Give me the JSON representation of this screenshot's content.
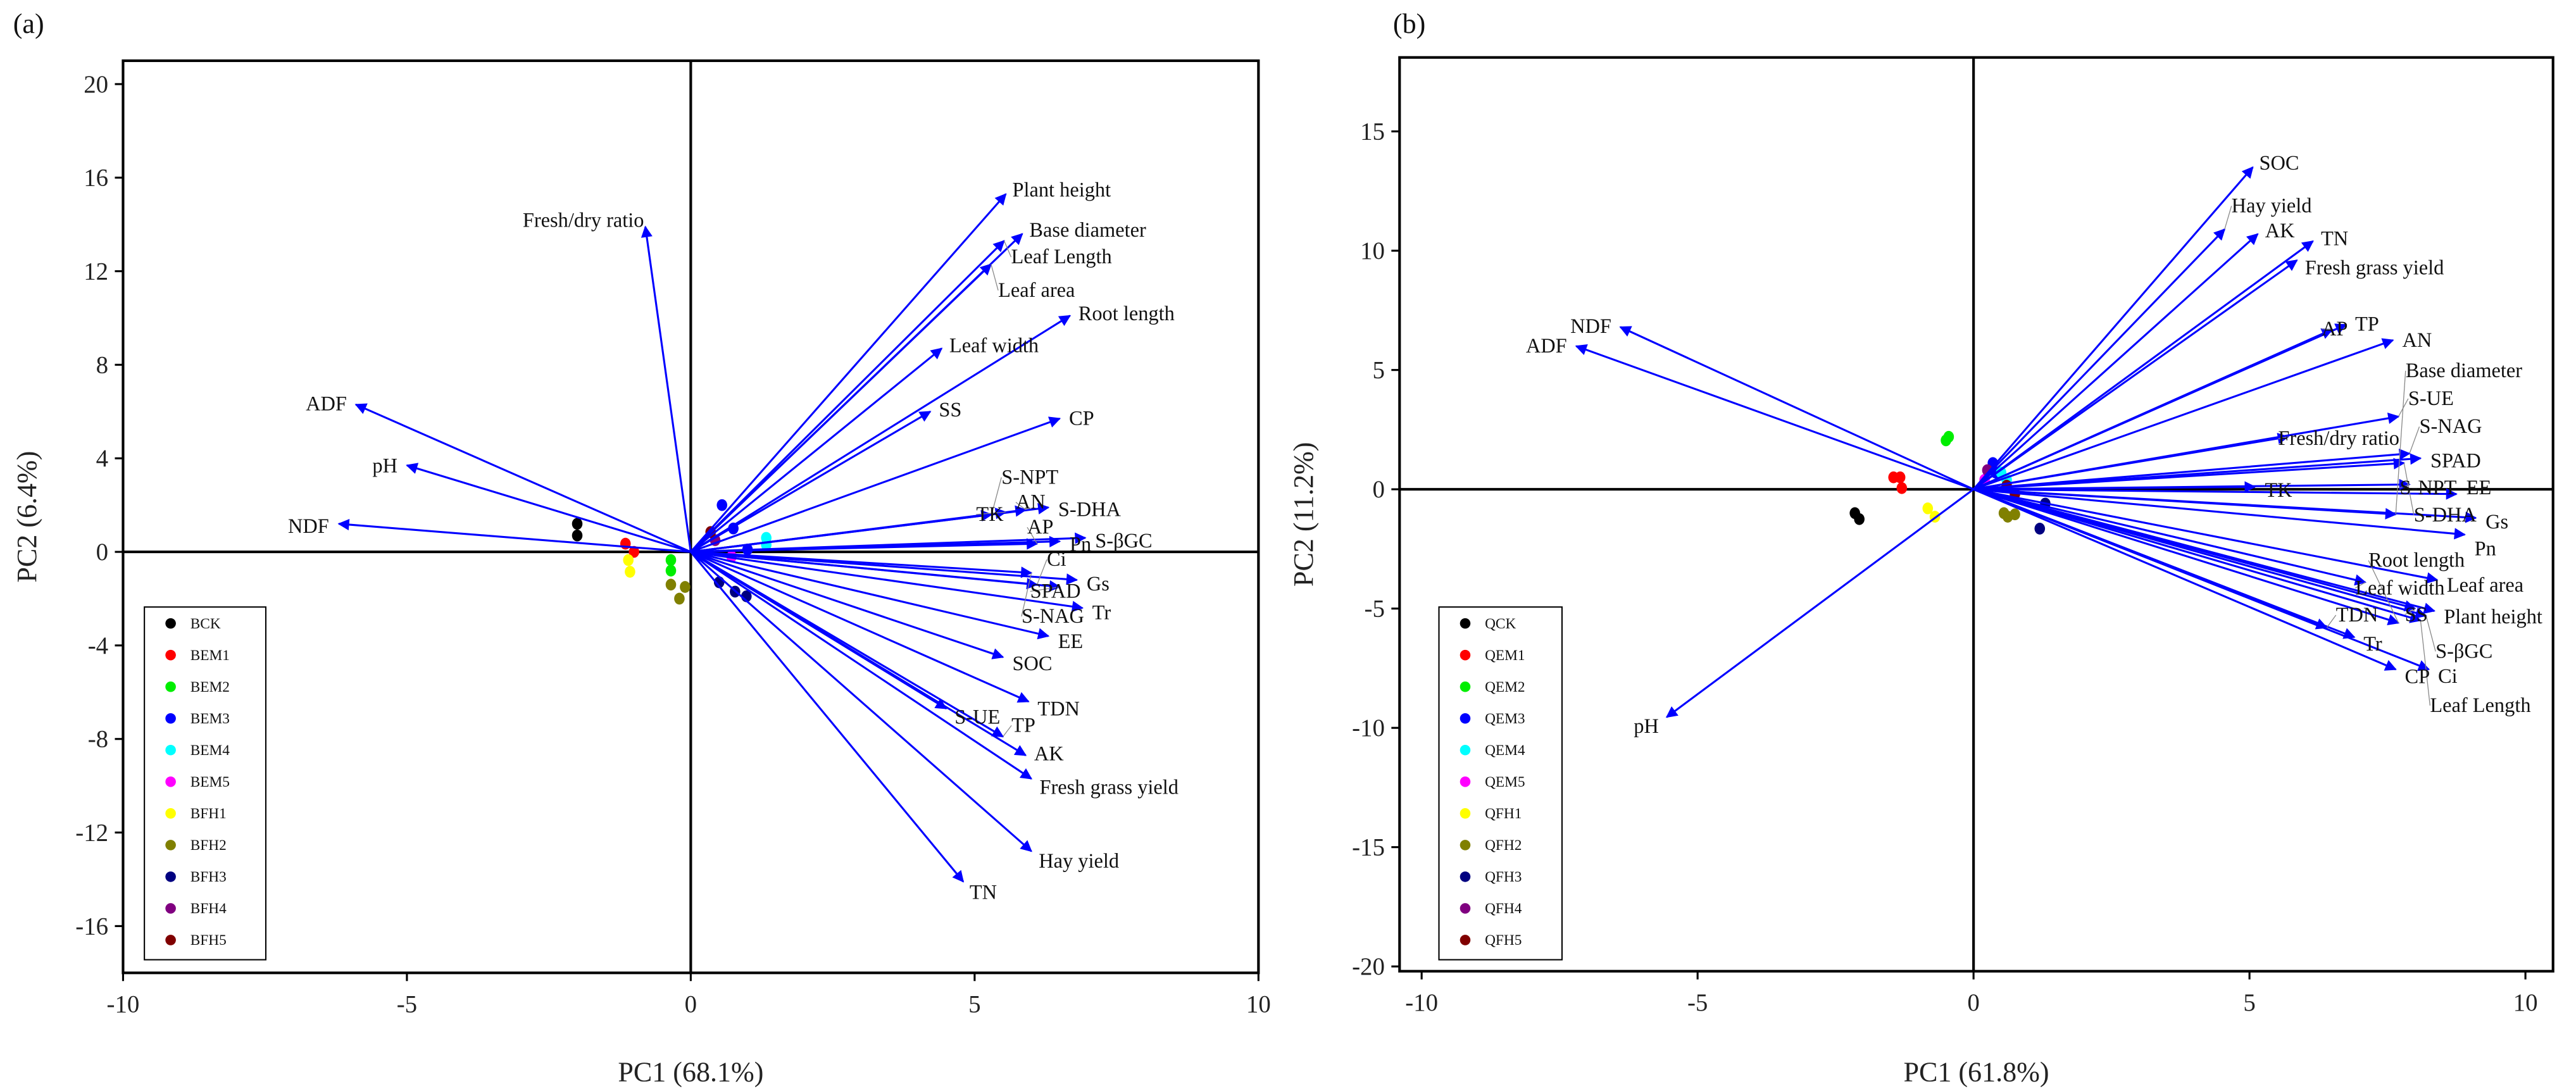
{
  "chart_data": [
    {
      "type": "scatter",
      "subtype": "pca-biplot",
      "panel_label": "(a)",
      "xlabel": "PC1 (68.1%)",
      "ylabel": "PC2 (6.4%)",
      "xlim": [
        -10,
        10
      ],
      "ylim": [
        -18,
        21
      ],
      "xticks": [
        -10,
        -5,
        0,
        5,
        10
      ],
      "yticks": [
        20,
        16,
        12,
        8,
        4,
        0,
        -4,
        -8,
        -12,
        -16
      ],
      "legend_placement": "bottom-left",
      "arrow_color": "#0000ff",
      "loadings": [
        {
          "name": "Plant height",
          "x": 5.55,
          "y": 15.3
        },
        {
          "name": "Base diameter",
          "x": 5.84,
          "y": 13.6
        },
        {
          "name": "Leaf Length",
          "x": 5.52,
          "y": 13.3
        },
        {
          "name": "Leaf area",
          "x": 5.29,
          "y": 12.3
        },
        {
          "name": "Root length",
          "x": 6.68,
          "y": 10.1
        },
        {
          "name": "Leaf width",
          "x": 4.42,
          "y": 8.7
        },
        {
          "name": "SS",
          "x": 4.22,
          "y": 6.0
        },
        {
          "name": "CP",
          "x": 6.5,
          "y": 5.7
        },
        {
          "name": "S-NPT",
          "x": 5.3,
          "y": 1.6
        },
        {
          "name": "TK",
          "x": 5.55,
          "y": 1.7
        },
        {
          "name": "AN",
          "x": 5.9,
          "y": 1.8
        },
        {
          "name": "S-DHA",
          "x": 6.3,
          "y": 1.9
        },
        {
          "name": "AP",
          "x": 6.1,
          "y": 0.35
        },
        {
          "name": "Pn",
          "x": 6.5,
          "y": 0.45
        },
        {
          "name": "S-βGC",
          "x": 6.95,
          "y": 0.6
        },
        {
          "name": "S-NAG",
          "x": 6.0,
          "y": -0.9
        },
        {
          "name": "Gs",
          "x": 6.8,
          "y": -1.2
        },
        {
          "name": "SPAD",
          "x": 6.5,
          "y": -1.5
        },
        {
          "name": "Ci",
          "x": 6.1,
          "y": -1.4
        },
        {
          "name": "Tr",
          "x": 6.9,
          "y": -2.4
        },
        {
          "name": "EE",
          "x": 6.3,
          "y": -3.6
        },
        {
          "name": "SOC",
          "x": 5.5,
          "y": -4.5
        },
        {
          "name": "TDN",
          "x": 5.95,
          "y": -6.4
        },
        {
          "name": "S-UE",
          "x": 4.5,
          "y": -6.7
        },
        {
          "name": "TP",
          "x": 5.5,
          "y": -7.9
        },
        {
          "name": "AK",
          "x": 5.9,
          "y": -8.7
        },
        {
          "name": "Fresh grass yield",
          "x": 6.0,
          "y": -9.7
        },
        {
          "name": "Hay yield",
          "x": 6.0,
          "y": -12.8
        },
        {
          "name": "TN",
          "x": 4.8,
          "y": -14.1
        },
        {
          "name": "Fresh/dry ratio",
          "x": -0.8,
          "y": 13.9
        },
        {
          "name": "ADF",
          "x": -5.9,
          "y": 6.3
        },
        {
          "name": "pH",
          "x": -5.0,
          "y": 3.7
        },
        {
          "name": "NDF",
          "x": -6.2,
          "y": 1.2
        }
      ],
      "groups": [
        {
          "name": "BCK",
          "color": "#000000",
          "points": [
            [
              -2.0,
              1.2
            ],
            [
              -2.0,
              0.7
            ]
          ]
        },
        {
          "name": "BEM1",
          "color": "#ff0000",
          "points": [
            [
              -1.15,
              0.35
            ],
            [
              -1.0,
              0.0
            ]
          ]
        },
        {
          "name": "BEM2",
          "color": "#00ee00",
          "points": [
            [
              -0.35,
              -0.35
            ],
            [
              -0.35,
              -0.8
            ]
          ]
        },
        {
          "name": "BEM3",
          "color": "#0000ff",
          "points": [
            [
              0.55,
              2.0
            ],
            [
              0.75,
              1.0
            ],
            [
              1.0,
              0.1
            ]
          ]
        },
        {
          "name": "BEM4",
          "color": "#00ffff",
          "points": [
            [
              1.33,
              0.6
            ],
            [
              1.33,
              0.3
            ]
          ]
        },
        {
          "name": "BEM5",
          "color": "#ff00ff",
          "points": [
            [
              0.72,
              -0.2
            ]
          ]
        },
        {
          "name": "BFH1",
          "color": "#ffff00",
          "points": [
            [
              -1.1,
              -0.35
            ],
            [
              -1.07,
              -0.85
            ]
          ]
        },
        {
          "name": "BFH2",
          "color": "#808000",
          "points": [
            [
              -0.35,
              -1.4
            ],
            [
              -0.1,
              -1.5
            ],
            [
              -0.2,
              -2.0
            ]
          ]
        },
        {
          "name": "BFH3",
          "color": "#000080",
          "points": [
            [
              0.5,
              -1.3
            ],
            [
              0.78,
              -1.7
            ],
            [
              0.98,
              -1.9
            ]
          ]
        },
        {
          "name": "BFH4",
          "color": "#800080",
          "points": [
            [
              0.43,
              0.5
            ]
          ]
        },
        {
          "name": "BFH5",
          "color": "#800000",
          "points": [
            [
              0.35,
              0.85
            ]
          ]
        }
      ]
    },
    {
      "type": "scatter",
      "subtype": "pca-biplot",
      "panel_label": "(b)",
      "xlabel": "PC1 (61.8%)",
      "ylabel": "PC2 (11.2%)",
      "xlim": [
        -10.4,
        10.5
      ],
      "ylim": [
        -20.2,
        18.1
      ],
      "xticks": [
        -10,
        -5,
        0,
        5,
        10
      ],
      "yticks": [
        15,
        10,
        5,
        0,
        -5,
        -10,
        -15,
        -20
      ],
      "legend_placement": "bottom-left",
      "arrow_color": "#0000ff",
      "loadings": [
        {
          "name": "SOC",
          "x": 5.06,
          "y": 13.5
        },
        {
          "name": "Hay yield",
          "x": 4.55,
          "y": 10.9
        },
        {
          "name": "AK",
          "x": 5.15,
          "y": 10.7
        },
        {
          "name": "TN",
          "x": 6.15,
          "y": 10.4
        },
        {
          "name": "Fresh grass yield",
          "x": 5.86,
          "y": 9.6
        },
        {
          "name": "AP",
          "x": 6.5,
          "y": 6.7
        },
        {
          "name": "TP",
          "x": 6.75,
          "y": 6.9
        },
        {
          "name": "AN",
          "x": 7.6,
          "y": 6.25
        },
        {
          "name": "NDF",
          "x": -6.4,
          "y": 6.8
        },
        {
          "name": "ADF",
          "x": -7.2,
          "y": 6.0
        },
        {
          "name": "pH",
          "x": -5.56,
          "y": -9.55
        },
        {
          "name": "Fresh/dry ratio",
          "x": 5.7,
          "y": 2.2
        },
        {
          "name": "S-UE",
          "x": 7.7,
          "y": 3.05
        },
        {
          "name": "S-NAG",
          "x": 7.9,
          "y": 1.5
        },
        {
          "name": "S-DHA",
          "x": 7.8,
          "y": 1.1
        },
        {
          "name": "SPAD",
          "x": 8.1,
          "y": 1.3
        },
        {
          "name": "TK",
          "x": 5.1,
          "y": 0.1
        },
        {
          "name": "S-NPT",
          "x": 7.9,
          "y": 0.2
        },
        {
          "name": "EE",
          "x": 8.75,
          "y": -0.2
        },
        {
          "name": "Base diameter",
          "x": 7.65,
          "y": -1.05
        },
        {
          "name": "Gs",
          "x": 9.1,
          "y": -1.2
        },
        {
          "name": "Pn",
          "x": 8.9,
          "y": -1.9
        },
        {
          "name": "Leaf width",
          "x": 7.1,
          "y": -3.9
        },
        {
          "name": "Leaf area",
          "x": 8.4,
          "y": -3.8
        },
        {
          "name": "SS",
          "x": 8.0,
          "y": -5.0
        },
        {
          "name": "Plant height",
          "x": 8.35,
          "y": -5.1
        },
        {
          "name": "S-βGC",
          "x": 8.2,
          "y": -5.3
        },
        {
          "name": "Root length",
          "x": 7.7,
          "y": -5.6
        },
        {
          "name": "Leaf Length",
          "x": 8.1,
          "y": -5.5
        },
        {
          "name": "Tr",
          "x": 6.9,
          "y": -6.2
        },
        {
          "name": "TDN",
          "x": 6.4,
          "y": -5.8
        },
        {
          "name": "CP",
          "x": 7.65,
          "y": -7.55
        },
        {
          "name": "Ci",
          "x": 8.25,
          "y": -7.55
        }
      ],
      "groups": [
        {
          "name": "QCK",
          "color": "#000000",
          "points": [
            [
              -2.15,
              -1.0
            ],
            [
              -2.07,
              -1.25
            ]
          ]
        },
        {
          "name": "QEM1",
          "color": "#ff0000",
          "points": [
            [
              -1.45,
              0.5
            ],
            [
              -1.33,
              0.5
            ],
            [
              -1.3,
              0.05
            ]
          ]
        },
        {
          "name": "QEM2",
          "color": "#00ee00",
          "points": [
            [
              -0.5,
              2.05
            ],
            [
              -0.45,
              2.2
            ]
          ]
        },
        {
          "name": "QEM3",
          "color": "#0000ff",
          "points": [
            [
              0.35,
              1.1
            ],
            [
              0.4,
              0.7
            ]
          ]
        },
        {
          "name": "QEM4",
          "color": "#00ffff",
          "points": [
            [
              0.5,
              0.7
            ],
            [
              0.6,
              0.4
            ]
          ]
        },
        {
          "name": "QEM5",
          "color": "#ff00ff",
          "points": [
            [
              0.2,
              0.4
            ]
          ]
        },
        {
          "name": "QFH1",
          "color": "#ffff00",
          "points": [
            [
              -0.83,
              -0.8
            ],
            [
              -0.7,
              -1.15
            ]
          ]
        },
        {
          "name": "QFH2",
          "color": "#808000",
          "points": [
            [
              0.55,
              -1.0
            ],
            [
              0.62,
              -1.15
            ],
            [
              0.75,
              -1.05
            ]
          ]
        },
        {
          "name": "QFH3",
          "color": "#000080",
          "points": [
            [
              1.2,
              -1.65
            ],
            [
              1.3,
              -0.6
            ]
          ]
        },
        {
          "name": "QFH4",
          "color": "#800080",
          "points": [
            [
              0.25,
              0.8
            ]
          ]
        },
        {
          "name": "QFH5",
          "color": "#800000",
          "points": [
            [
              0.6,
              0.15
            ],
            [
              0.75,
              -0.2
            ]
          ]
        }
      ]
    }
  ]
}
